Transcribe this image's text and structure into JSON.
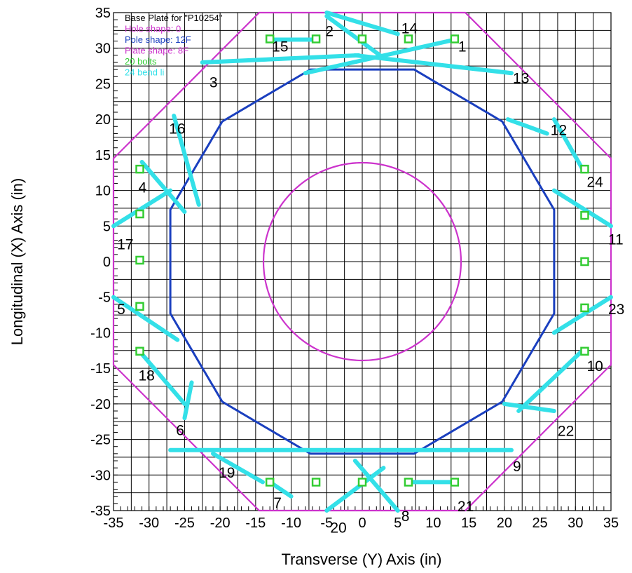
{
  "chart_data": {
    "type": "scatter",
    "xlabel": "Transverse (Y) Axis (in)",
    "ylabel": "Longitudinal (X) Axis (in)",
    "xlim": [
      -35,
      35
    ],
    "ylim": [
      -35,
      35
    ],
    "x_ticks": [
      -35,
      -30,
      -25,
      -20,
      -15,
      -10,
      -5,
      0,
      5,
      10,
      15,
      20,
      25,
      30,
      35
    ],
    "y_ticks": [
      35,
      30,
      25,
      20,
      15,
      10,
      5,
      0,
      -5,
      -10,
      -15,
      -20,
      -25,
      -30,
      -35
    ],
    "grid": true,
    "legend_position": "top-left",
    "legend": [
      {
        "text": "Base Plate for \"P10254\"",
        "color": "#000000"
      },
      {
        "text": "Hole shape: 0",
        "color": "#cc33cc"
      },
      {
        "text": "Pole shape: 12F",
        "color": "#1a3fbf"
      },
      {
        "text": "Plate shape: 8F",
        "color": "#cc33cc"
      },
      {
        "text": "20 bolts",
        "color": "#33cc33"
      },
      {
        "text": "24 bend li",
        "color": "#33e0e8"
      }
    ],
    "colors": {
      "plate": "#cc33cc",
      "hole": "#cc33cc",
      "pole": "#1a3fbf",
      "bolts": "#33cc33",
      "bend_lines": "#33e0e8",
      "grid": "#000000"
    },
    "plate_outline": [
      [
        -14.5,
        35
      ],
      [
        14.5,
        35
      ],
      [
        35,
        14.5
      ],
      [
        35,
        -14.5
      ],
      [
        14.5,
        -35
      ],
      [
        -14.5,
        -35
      ],
      [
        -35,
        -14.5
      ],
      [
        -35,
        14.5
      ]
    ],
    "hole": {
      "cx": 0,
      "cy": 0,
      "r": 13.9
    },
    "pole_outline": [
      [
        7.3,
        27
      ],
      [
        19.7,
        19.7
      ],
      [
        27,
        7.3
      ],
      [
        27,
        -7.3
      ],
      [
        19.7,
        -19.7
      ],
      [
        7.3,
        -27
      ],
      [
        -7.3,
        -27
      ],
      [
        -19.7,
        -19.7
      ],
      [
        -27,
        -7.3
      ],
      [
        -27,
        7.3
      ],
      [
        -19.7,
        19.7
      ],
      [
        -7.3,
        27
      ]
    ],
    "bolts": [
      [
        -13,
        31.3
      ],
      [
        -6.5,
        31.3
      ],
      [
        0,
        31.3
      ],
      [
        6.5,
        31.3
      ],
      [
        13,
        31.3
      ],
      [
        31.3,
        13
      ],
      [
        31.3,
        6.5
      ],
      [
        31.3,
        0
      ],
      [
        31.3,
        -6.5
      ],
      [
        31.3,
        -12.6
      ],
      [
        13,
        -31
      ],
      [
        6.5,
        -31
      ],
      [
        0,
        -31
      ],
      [
        -6.5,
        -31
      ],
      [
        -13,
        -31
      ],
      [
        -31.3,
        -12.6
      ],
      [
        -31.3,
        -6.3
      ],
      [
        -31.3,
        0.2
      ],
      [
        -31.3,
        6.7
      ],
      [
        -31.3,
        13
      ]
    ],
    "bend_lines": [
      {
        "label": "1",
        "line": [
          [
            -8,
            26.5
          ],
          [
            13,
            31.2
          ]
        ],
        "label_pos": [
          13.5,
          30.3
        ]
      },
      {
        "label": "2",
        "line": [
          [
            -5,
            34.5
          ],
          [
            2.5,
            29
          ]
        ],
        "label_pos": [
          -5.2,
          32.5
        ]
      },
      {
        "label": "3",
        "line": [
          [
            -22.5,
            28
          ],
          [
            -0.5,
            29
          ]
        ],
        "label_pos": [
          -21.5,
          25.3
        ]
      },
      {
        "label": "4",
        "line": [
          [
            -31,
            14
          ],
          [
            -25,
            7
          ]
        ],
        "label_pos": [
          -31.5,
          10.5
        ]
      },
      {
        "label": "5",
        "line": [
          [
            -35,
            -5
          ],
          [
            -26,
            -11
          ]
        ],
        "label_pos": [
          -34.5,
          -6.6
        ]
      },
      {
        "label": "6",
        "line": [
          [
            -25,
            -22
          ],
          [
            -24,
            -17
          ]
        ],
        "label_pos": [
          -26.2,
          -23.6
        ]
      },
      {
        "label": "7",
        "line": [
          [
            -13,
            -31
          ],
          [
            -10,
            -33
          ]
        ],
        "label_pos": [
          -12.5,
          -33.8
        ]
      },
      {
        "label": "8",
        "line": [
          [
            -1,
            -28
          ],
          [
            5,
            -35
          ]
        ],
        "label_pos": [
          5.5,
          -35.7
        ]
      },
      {
        "label": "9",
        "line": [
          [
            -27,
            -26.5
          ],
          [
            21,
            -26.5
          ]
        ],
        "label_pos": [
          21.2,
          -28.7
        ]
      },
      {
        "label": "10",
        "line": [
          [
            22,
            -21
          ],
          [
            31,
            -12.5
          ]
        ],
        "label_pos": [
          31.6,
          -14.6
        ]
      },
      {
        "label": "11",
        "line": [
          [
            27,
            10
          ],
          [
            35,
            5
          ]
        ],
        "label_pos": [
          34.6,
          3.2
        ]
      },
      {
        "label": "12",
        "line": [
          [
            20.5,
            20
          ],
          [
            26,
            18
          ]
        ],
        "label_pos": [
          26.5,
          18.6
        ]
      },
      {
        "label": "13",
        "line": [
          [
            -1,
            29
          ],
          [
            21,
            26.5
          ]
        ],
        "label_pos": [
          21.2,
          25.9
        ]
      },
      {
        "label": "14",
        "line": [
          [
            -5,
            35
          ],
          [
            5,
            32
          ]
        ],
        "label_pos": [
          5.5,
          32.9
        ]
      },
      {
        "label": "15",
        "line": [
          [
            -13,
            31.2
          ],
          [
            -6.5,
            31.2
          ]
        ],
        "label_pos": [
          -12.7,
          30.3
        ]
      },
      {
        "label": "16",
        "line": [
          [
            -26.5,
            20.5
          ],
          [
            -23,
            8
          ]
        ],
        "label_pos": [
          -27.2,
          18.8
        ]
      },
      {
        "label": "17",
        "line": [
          [
            -35,
            5
          ],
          [
            -27,
            10
          ]
        ],
        "label_pos": [
          -34.5,
          2.5
        ]
      },
      {
        "label": "18",
        "line": [
          [
            -31,
            -13
          ],
          [
            -25,
            -20
          ]
        ],
        "label_pos": [
          -31.5,
          -15.9
        ]
      },
      {
        "label": "19",
        "line": [
          [
            -21,
            -27
          ],
          [
            -14,
            -31
          ]
        ],
        "label_pos": [
          -20.2,
          -29.6
        ]
      },
      {
        "label": "20",
        "line": [
          [
            -5,
            -35
          ],
          [
            3,
            -29
          ]
        ],
        "label_pos": [
          -4.5,
          -37.3
        ]
      },
      {
        "label": "21",
        "line": [
          [
            6.5,
            -31
          ],
          [
            13,
            -31
          ]
        ],
        "label_pos": [
          13.4,
          -34.3
        ]
      },
      {
        "label": "22",
        "line": [
          [
            20,
            -20
          ],
          [
            27,
            -21
          ]
        ],
        "label_pos": [
          27.5,
          -23.7
        ]
      },
      {
        "label": "23",
        "line": [
          [
            27,
            -10
          ],
          [
            35,
            -5
          ]
        ],
        "label_pos": [
          34.6,
          -6.6
        ]
      },
      {
        "label": "24",
        "line": [
          [
            27,
            20
          ],
          [
            31,
            13
          ]
        ],
        "label_pos": [
          31.6,
          11.3
        ]
      }
    ]
  }
}
